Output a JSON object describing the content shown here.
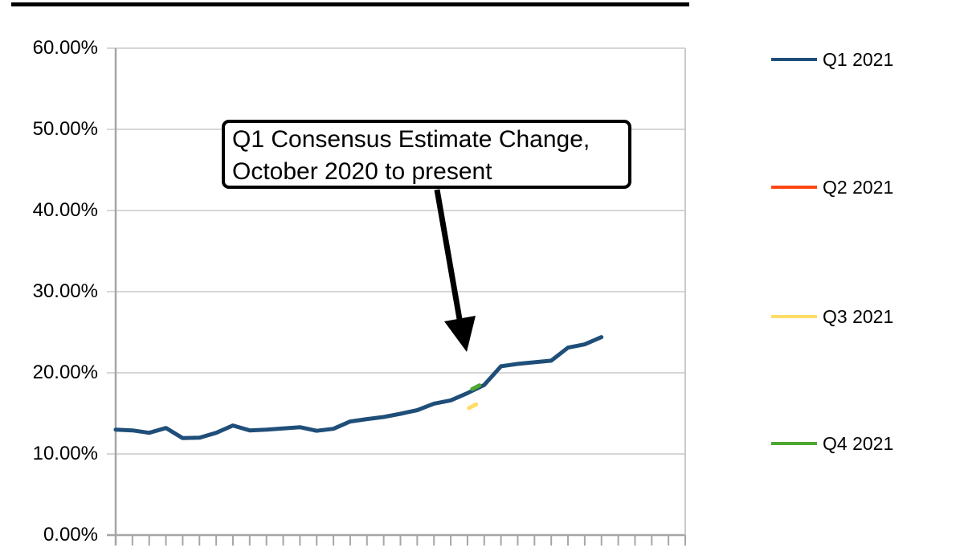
{
  "chart_data": {
    "type": "line",
    "title": "",
    "annotation": {
      "line1": "Q1 Consensus Estimate Change,",
      "line2": "October 2020 to present",
      "arrow_points_to": "Q1 2021 line near 18%"
    },
    "y_axis": {
      "format": "percent",
      "min": 0,
      "max": 60,
      "tick_labels": [
        "60.00%",
        "50.00%",
        "40.00%",
        "30.00%",
        "20.00%",
        "10.00%",
        "0.00%"
      ]
    },
    "x_axis": {
      "tick_count": 35,
      "tick_labels": []
    },
    "grid": true,
    "legend_position": "right",
    "series": [
      {
        "name": "Q1 2021",
        "color": "#1F4E79",
        "unit": "%",
        "values": [
          13.0,
          12.9,
          12.6,
          13.2,
          11.95,
          12.0,
          12.6,
          13.5,
          12.9,
          13.0,
          13.15,
          13.3,
          12.85,
          13.1,
          14.0,
          14.3,
          14.55,
          14.95,
          15.4,
          16.2,
          16.6,
          17.5,
          18.5,
          20.8,
          21.1,
          21.3,
          21.5,
          23.1,
          23.5,
          24.4
        ]
      },
      {
        "name": "Q2 2021",
        "color": "#FF4713",
        "unit": "%",
        "values": []
      },
      {
        "name": "Q3 2021",
        "color": "#FFDD66",
        "unit": "%",
        "points": [
          {
            "i": 21.3,
            "value": 15.85
          }
        ]
      },
      {
        "name": "Q4 2021",
        "color": "#4EA72E",
        "unit": "%",
        "points": [
          {
            "i": 21.5,
            "value": 18.2
          }
        ]
      }
    ]
  }
}
